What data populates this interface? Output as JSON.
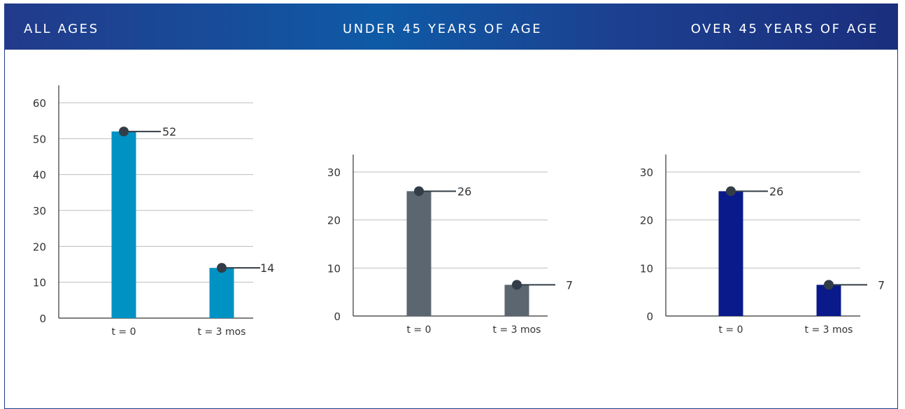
{
  "header": {
    "all_ages": "ALL AGES",
    "under_45": "UNDER 45 YEARS OF AGE",
    "over_45": "OVER 45 YEARS OF AGE"
  },
  "colors": {
    "header_gradient": [
      "#223a8a",
      "#0f5aa6",
      "#1a2f7e"
    ],
    "marker": "#333d47",
    "grid": "#bdbdbd",
    "axis": "#333333"
  },
  "chart_data": [
    {
      "type": "bar",
      "panel": "ALL AGES",
      "categories": [
        "t = 0",
        "t = 3 mos"
      ],
      "values": [
        52,
        14
      ],
      "value_labels": [
        "52",
        "14"
      ],
      "ylim": [
        0,
        60
      ],
      "yticks": [
        0,
        10,
        20,
        30,
        40,
        50,
        60
      ],
      "bar_color": "#0092c3",
      "grid": true,
      "xlabel": "",
      "ylabel": ""
    },
    {
      "type": "bar",
      "panel": "UNDER 45 YEARS OF AGE",
      "categories": [
        "t = 0",
        "t = 3 mos"
      ],
      "values": [
        26,
        6.5
      ],
      "value_labels": [
        "26",
        "7"
      ],
      "ylim": [
        0,
        30
      ],
      "yticks": [
        0,
        10,
        20,
        30
      ],
      "bar_color": "#5b6670",
      "grid": true,
      "xlabel": "",
      "ylabel": ""
    },
    {
      "type": "bar",
      "panel": "OVER 45 YEARS OF AGE",
      "categories": [
        "t = 0",
        "t = 3 mos"
      ],
      "values": [
        26,
        6.5
      ],
      "value_labels": [
        "26",
        "7"
      ],
      "ylim": [
        0,
        30
      ],
      "yticks": [
        0,
        10,
        20,
        30
      ],
      "bar_color": "#0a1a8a",
      "grid": true,
      "xlabel": "",
      "ylabel": ""
    }
  ]
}
